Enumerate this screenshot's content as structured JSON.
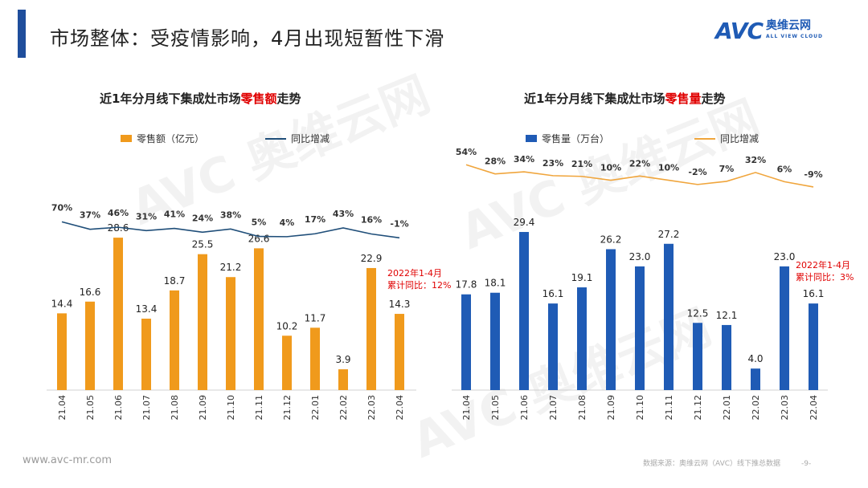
{
  "header": {
    "title": "市场整体：受疫情影响，4月出现短暂性下滑"
  },
  "logo": {
    "avc": "AVC",
    "cn": "奥维云网",
    "en": "ALL VIEW CLOUD"
  },
  "footer": {
    "url": "www.avc-mr.com",
    "source": "数据来源：奥维云网（AVC）线下推总数据",
    "page": "-9-"
  },
  "colors": {
    "orange": "#f09a1c",
    "blue": "#1f5bb5",
    "navy": "#1f4e79",
    "line_orange": "#f0a53c",
    "red": "#e00000"
  },
  "chart_data": [
    {
      "type": "bar+line",
      "title_prefix": "近1年分月线下集成灶市场",
      "title_highlight": "零售额",
      "title_suffix": "走势",
      "legend": "top",
      "categories": [
        "21.04",
        "21.05",
        "21.06",
        "21.07",
        "21.08",
        "21.09",
        "21.10",
        "21.11",
        "21.12",
        "22.01",
        "22.02",
        "22.03",
        "22.04"
      ],
      "series": [
        {
          "name": "零售额（亿元）",
          "type": "bar",
          "values": [
            14.4,
            16.6,
            28.6,
            13.4,
            18.7,
            25.5,
            21.2,
            26.6,
            10.2,
            11.7,
            3.9,
            22.9,
            14.3
          ]
        },
        {
          "name": "同比增减",
          "type": "line",
          "values": [
            70,
            37,
            46,
            31,
            41,
            24,
            38,
            5,
            4,
            17,
            43,
            16,
            -1
          ],
          "unit": "%"
        }
      ],
      "annotation": [
        "2022年1-4月",
        "累计同比：12%"
      ]
    },
    {
      "type": "bar+line",
      "title_prefix": "近1年分月线下集成灶市场",
      "title_highlight": "零售量",
      "title_suffix": "走势",
      "legend": "top",
      "categories": [
        "21.04",
        "21.05",
        "21.06",
        "21.07",
        "21.08",
        "21.09",
        "21.10",
        "21.11",
        "21.12",
        "22.01",
        "22.02",
        "22.03",
        "22.04"
      ],
      "series": [
        {
          "name": "零售量（万台）",
          "type": "bar",
          "values": [
            17.8,
            18.1,
            29.4,
            16.1,
            19.1,
            26.2,
            23.0,
            27.2,
            12.5,
            12.1,
            4.0,
            23.0,
            16.1
          ]
        },
        {
          "name": "同比增减",
          "type": "line",
          "values": [
            54,
            28,
            34,
            23,
            21,
            10,
            22,
            10,
            -2,
            7,
            32,
            6,
            -9
          ],
          "unit": "%"
        }
      ],
      "annotation": [
        "2022年1-4月",
        "累计同比：3%"
      ]
    }
  ]
}
